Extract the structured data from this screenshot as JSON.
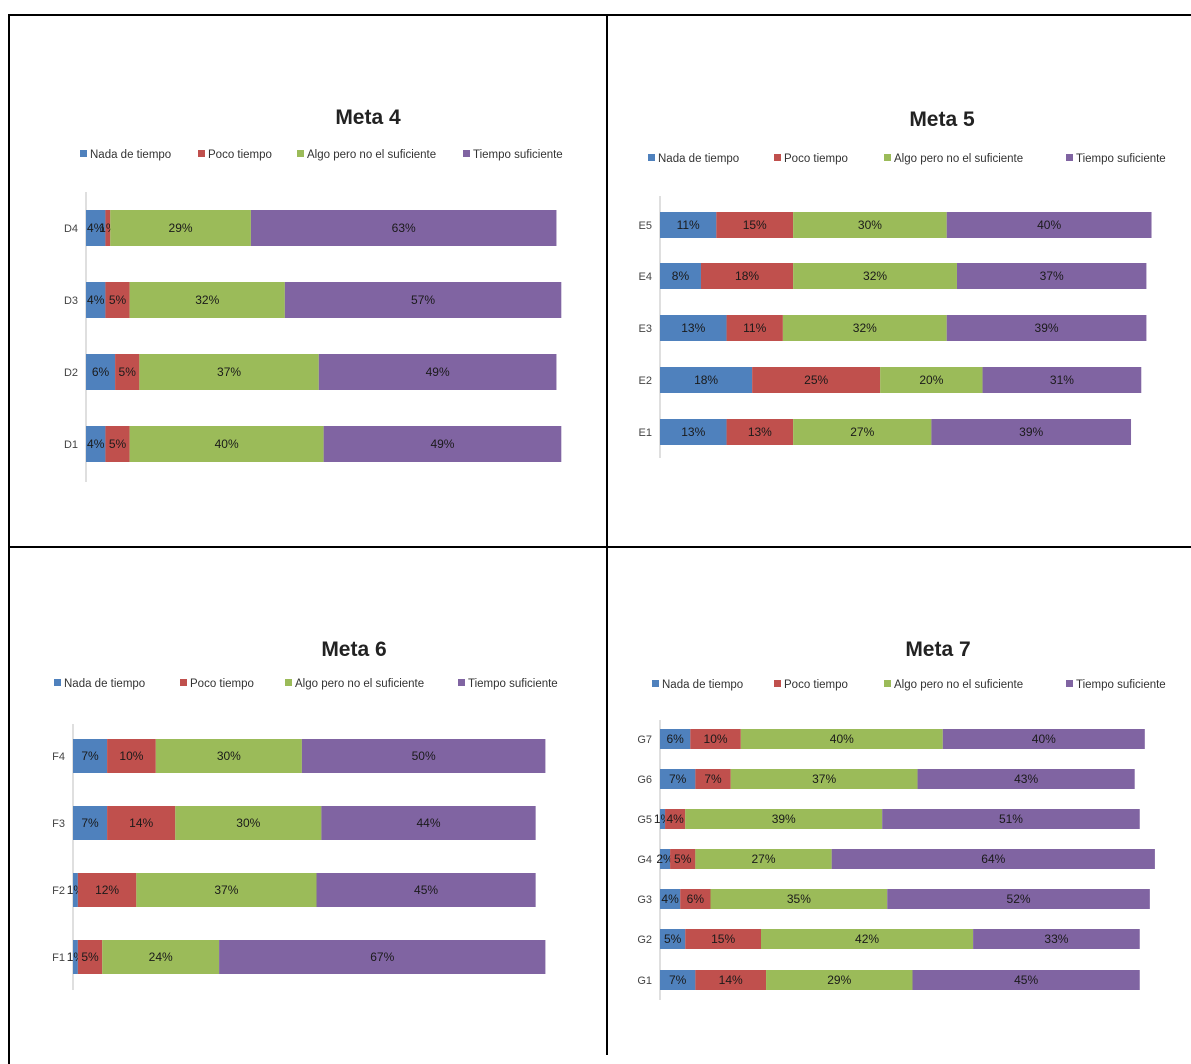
{
  "colors": {
    "nada": "#4f81bd",
    "poco": "#c0504d",
    "algo": "#9bbb59",
    "suficiente": "#8064a2"
  },
  "chart_data": [
    {
      "type": "bar",
      "orientation": "horizontal-stacked",
      "title": "Meta 4",
      "legend": "top",
      "categories": [
        "D4",
        "D3",
        "D2",
        "D1"
      ],
      "series": [
        {
          "name": "Nada de tiempo",
          "values": [
            4,
            4,
            6,
            4
          ],
          "labels": [
            "4%",
            "4%",
            "6%",
            "4%"
          ]
        },
        {
          "name": "Poco tiempo",
          "values": [
            1,
            5,
            5,
            5
          ],
          "labels": [
            "1%",
            "5%",
            "5%",
            "5%"
          ]
        },
        {
          "name": "Algo pero no el suficiente",
          "values": [
            29,
            32,
            37,
            40
          ],
          "labels": [
            "29%",
            "32%",
            "37%",
            "40%"
          ]
        },
        {
          "name": "Tiempo suficiente",
          "values": [
            63,
            57,
            49,
            49
          ],
          "labels": [
            "63%",
            "57%",
            "49%",
            "49%"
          ]
        }
      ]
    },
    {
      "type": "bar",
      "orientation": "horizontal-stacked",
      "title": "Meta 5",
      "legend": "top",
      "categories": [
        "E5",
        "E4",
        "E3",
        "E2",
        "E1"
      ],
      "series": [
        {
          "name": "Nada de tiempo",
          "values": [
            11,
            8,
            13,
            18,
            13
          ],
          "labels": [
            "11%",
            "8%",
            "13%",
            "18%",
            "13%"
          ]
        },
        {
          "name": "Poco tiempo",
          "values": [
            15,
            18,
            11,
            25,
            13
          ],
          "labels": [
            "15%",
            "18%",
            "11%",
            "25%",
            "13%"
          ]
        },
        {
          "name": "Algo pero no el suficiente",
          "values": [
            30,
            32,
            32,
            20,
            27
          ],
          "labels": [
            "30%",
            "32%",
            "32%",
            "20%",
            "27%"
          ]
        },
        {
          "name": "Tiempo suficiente",
          "values": [
            40,
            37,
            39,
            31,
            39
          ],
          "labels": [
            "40%",
            "37%",
            "39%",
            "31%",
            "39%"
          ]
        }
      ]
    },
    {
      "type": "bar",
      "orientation": "horizontal-stacked",
      "title": "Meta 6",
      "legend": "top",
      "categories": [
        "F4",
        "F3",
        "F2",
        "F1"
      ],
      "series": [
        {
          "name": "Nada de tiempo",
          "values": [
            7,
            7,
            1,
            1
          ],
          "labels": [
            "7%",
            "7%",
            "1%",
            "1%"
          ]
        },
        {
          "name": "Poco tiempo",
          "values": [
            10,
            14,
            12,
            5
          ],
          "labels": [
            "10%",
            "14%",
            "12%",
            "5%"
          ]
        },
        {
          "name": "Algo pero no el suficiente",
          "values": [
            30,
            30,
            37,
            24
          ],
          "labels": [
            "30%",
            "30%",
            "37%",
            "24%"
          ]
        },
        {
          "name": "Tiempo suficiente",
          "values": [
            50,
            44,
            45,
            67
          ],
          "labels": [
            "50%",
            "44%",
            "45%",
            "67%"
          ]
        }
      ]
    },
    {
      "type": "bar",
      "orientation": "horizontal-stacked",
      "title": "Meta 7",
      "legend": "top",
      "categories": [
        "G7",
        "G6",
        "G5",
        "G4",
        "G3",
        "G2",
        "G1"
      ],
      "series": [
        {
          "name": "Nada de tiempo",
          "values": [
            6,
            7,
            1,
            2,
            4,
            5,
            7
          ],
          "labels": [
            "6%",
            "7%",
            "1%",
            "2%",
            "4%",
            "5%",
            "7%"
          ]
        },
        {
          "name": "Poco tiempo",
          "values": [
            10,
            7,
            4,
            5,
            6,
            15,
            14
          ],
          "labels": [
            "10%",
            "7%",
            "4%",
            "5%",
            "6%",
            "15%",
            "14%"
          ]
        },
        {
          "name": "Algo pero no el suficiente",
          "values": [
            40,
            37,
            39,
            27,
            35,
            42,
            29
          ],
          "labels": [
            "40%",
            "37%",
            "39%",
            "27%",
            "35%",
            "42%",
            "29%"
          ]
        },
        {
          "name": "Tiempo suficiente",
          "values": [
            40,
            43,
            51,
            64,
            52,
            33,
            45
          ],
          "labels": [
            "40%",
            "43%",
            "51%",
            "64%",
            "52%",
            "33%",
            "45%"
          ]
        }
      ]
    }
  ]
}
